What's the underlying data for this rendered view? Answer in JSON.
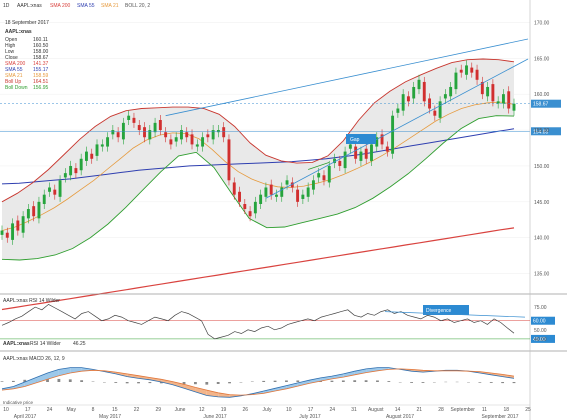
{
  "header": {
    "timeframe": "1D",
    "symbol": "AAPL:xnas",
    "indicators": [
      {
        "label": "SMA 200",
        "color": "#d9433f"
      },
      {
        "label": "SMA 55",
        "color": "#2f3fb0"
      },
      {
        "label": "SMA 21",
        "color": "#e69a3d"
      },
      {
        "label": "BOLL 20, 2",
        "color": "#555555"
      }
    ]
  },
  "info_box": {
    "date": "18 September 2017",
    "symbol": "AAPL:xnas",
    "rows": [
      {
        "label": "Open",
        "value": "160.11",
        "color": "#333333"
      },
      {
        "label": "High",
        "value": "160.50",
        "color": "#333333"
      },
      {
        "label": "Low",
        "value": "158.00",
        "color": "#333333"
      },
      {
        "label": "Close",
        "value": "158.67",
        "color": "#333333"
      },
      {
        "label": "SMA 200",
        "value": "141.37",
        "color": "#d9433f"
      },
      {
        "label": "SMA 55",
        "value": "155.17",
        "color": "#2f3fb0"
      },
      {
        "label": "SMA 21",
        "value": "158.59",
        "color": "#e69a3d"
      },
      {
        "label": "Boll Up",
        "value": "164.51",
        "color": "#c8362e"
      },
      {
        "label": "Boll Down",
        "value": "156.95",
        "color": "#2f9e2f"
      }
    ]
  },
  "annotations": {
    "gap": "Gap",
    "divergence": "Divergence"
  },
  "chart_data": [
    {
      "type": "line",
      "name": "price",
      "ylim": [
        133,
        172
      ],
      "y_ticks": [
        "135.00",
        "140.00",
        "145.00",
        "150.00",
        "155.00",
        "160.00",
        "165.00",
        "170.00"
      ],
      "price_markers": [
        {
          "value": "158.67",
          "y": 158.67,
          "color": "#3a8fd0"
        },
        {
          "value": "154.83",
          "y": 154.83,
          "color": "#3a8fd0"
        }
      ],
      "close": [
        141,
        140,
        142,
        141,
        143,
        144,
        143,
        145,
        146,
        147,
        146,
        148,
        149,
        150,
        149,
        151,
        152,
        151,
        153,
        153,
        154,
        155,
        154,
        156,
        157,
        156,
        155,
        154,
        155,
        156,
        155,
        154,
        153,
        154,
        155,
        154,
        153,
        153,
        154,
        154,
        155,
        155,
        154,
        148,
        146,
        145,
        144,
        143,
        145,
        146,
        147,
        146,
        146,
        147,
        148,
        147,
        145,
        146,
        147,
        148,
        149,
        148,
        150,
        151,
        150,
        152,
        153,
        151,
        152,
        151,
        153,
        154,
        153,
        152,
        157,
        158,
        160,
        159,
        161,
        162,
        159,
        158,
        157,
        159,
        160,
        161,
        163,
        163,
        164,
        163,
        162,
        160,
        161,
        159,
        159,
        160,
        158,
        158.67
      ],
      "sma200": [
        130,
        130.3,
        130.6,
        130.9,
        131.2,
        131.5,
        131.8,
        132.1,
        132.4,
        132.7,
        133,
        133.3,
        133.6,
        133.9,
        134.2,
        134.5,
        134.8,
        135.1,
        135.4,
        135.7,
        136,
        136.3,
        136.6,
        136.9,
        137.2,
        137.5,
        137.8,
        138.1,
        138.4,
        138.7,
        139,
        139.3,
        139.6,
        139.9,
        140.2,
        140.5,
        140.8,
        141.1,
        141.37
      ],
      "sma55": [
        147.5,
        147.6,
        147.8,
        148,
        148.2,
        148.5,
        148.8,
        149.1,
        149.4,
        149.6,
        149.8,
        150,
        150.1,
        150.2,
        150.3,
        150.4,
        150.5,
        150.6,
        150.8,
        151,
        151.3,
        151.6,
        152,
        152.4,
        152.8,
        153.2,
        153.6,
        154,
        154.4,
        154.8,
        155.17
      ],
      "sma21": [
        141,
        141.5,
        142.3,
        143.2,
        144.2,
        145.4,
        146.7,
        148,
        149.5,
        151,
        152.5,
        153.6,
        154.3,
        154.6,
        154.5,
        153.8,
        152.3,
        150.6,
        149.2,
        148.2,
        147.5,
        147.1,
        147,
        147.2,
        147.6,
        148.1,
        148.8,
        149.6,
        150.5,
        151.5,
        152.6,
        153.8,
        155,
        156.2,
        157.2,
        158,
        158.5,
        158.8,
        158.9,
        158.59
      ],
      "boll_up": [
        145,
        146.2,
        147.7,
        149.5,
        151.6,
        153.7,
        155.5,
        156.9,
        157.7,
        158,
        158.1,
        158.2,
        158.2,
        158,
        157.2,
        155.5,
        153.2,
        151.5,
        150.7,
        150.4,
        150.5,
        151.4,
        153.5,
        156.4,
        158.8,
        160.4,
        161.7,
        162.7,
        163.6,
        164.4,
        164.8,
        164.9,
        164.8,
        164.51
      ],
      "boll_down": [
        137,
        136.9,
        137.1,
        137.6,
        138.5,
        140,
        141.9,
        144.2,
        146.7,
        149.2,
        151.4,
        151.9,
        149.8,
        146.2,
        142.7,
        141.4,
        141.5,
        142.1,
        142.7,
        143.3,
        144.2,
        145.5,
        147.1,
        148.9,
        151,
        153.2,
        155.2,
        156.6,
        157,
        156.95
      ]
    },
    {
      "type": "line",
      "name": "rsi",
      "title": "AAPL:xnas   RSI 14 Wilder",
      "legend_label": "RSI 14 Wilder",
      "legend_value": "46.25",
      "ylim": [
        30,
        85
      ],
      "y_ticks": [
        "40.00",
        "50.00",
        "75.00"
      ],
      "levels": [
        60,
        40
      ],
      "level_labels": [
        "60.00",
        "40.00"
      ],
      "values": [
        55,
        58,
        62,
        65,
        70,
        75,
        72,
        78,
        74,
        70,
        66,
        62,
        68,
        70,
        65,
        60,
        62,
        66,
        64,
        60,
        58,
        56,
        60,
        64,
        62,
        60,
        66,
        70,
        68,
        64,
        60,
        45,
        40,
        42,
        44,
        48,
        46,
        50,
        48,
        52,
        54,
        50,
        52,
        56,
        58,
        60,
        62,
        60,
        64,
        66,
        68,
        70,
        72,
        66,
        64,
        68,
        66,
        70,
        72,
        68,
        70,
        66,
        64,
        62,
        66,
        64,
        60,
        62,
        58,
        60,
        62,
        58,
        60,
        56,
        62,
        58,
        52,
        46.25
      ]
    },
    {
      "type": "line",
      "name": "macd",
      "title": "AAPL:xnas   MACD 26, 12, 9",
      "x_tick_labels": [
        "10",
        "17",
        "24",
        "May",
        "8",
        "15",
        "22",
        "29",
        "June",
        "12",
        "19",
        "26",
        "July",
        "10",
        "17",
        "24",
        "31",
        "August",
        "14",
        "21",
        "28",
        "September",
        "11",
        "18",
        "25"
      ],
      "month_labels": [
        "April 2017",
        "May 2017",
        "June 2017",
        "July 2017",
        "August 2017",
        "September 2017"
      ],
      "indicative_label": "Indicative price",
      "macd": [
        -1.5,
        -1,
        0,
        1,
        2,
        2.8,
        3.2,
        3.2,
        2.8,
        2.3,
        1.8,
        1.2,
        0.8,
        0.5,
        0,
        -0.6,
        -1.4,
        -2.2,
        -3,
        -3.3,
        -3.4,
        -3.1,
        -2.6,
        -2,
        -1.4,
        -0.8,
        -0.2,
        0.4,
        0.9,
        1.3,
        1.8,
        2.4,
        2.9,
        3.2,
        3.2,
        2.8,
        2.4,
        2.2,
        2.4,
        2.6,
        2.6,
        2.4,
        2,
        1.6,
        1.2,
        0.8
      ],
      "signal": [
        -1.8,
        -1.5,
        -1,
        -0.2,
        0.6,
        1.4,
        2,
        2.4,
        2.6,
        2.5,
        2.2,
        1.8,
        1.4,
        1,
        0.6,
        0.1,
        -0.5,
        -1.2,
        -1.8,
        -2.4,
        -2.8,
        -2.9,
        -2.8,
        -2.5,
        -2,
        -1.5,
        -0.9,
        -0.3,
        0.2,
        0.7,
        1.1,
        1.6,
        2.1,
        2.5,
        2.8,
        2.9,
        2.8,
        2.6,
        2.5,
        2.5,
        2.5,
        2.4,
        2.3,
        2,
        1.7,
        1.3
      ]
    }
  ]
}
